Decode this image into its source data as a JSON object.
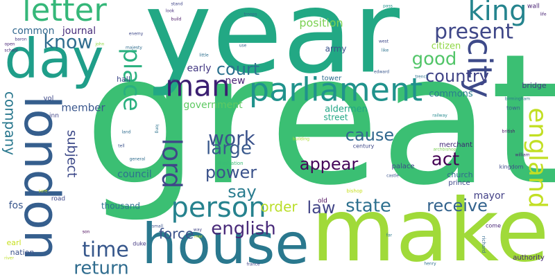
{
  "words": [
    {
      "text": "great",
      "color": "#3bbf73"
    },
    {
      "text": "year",
      "color": "#22a884"
    },
    {
      "text": "make",
      "color": "#a0da39"
    },
    {
      "text": "house",
      "color": "#2a788e"
    },
    {
      "text": "london",
      "color": "#355e8d"
    },
    {
      "text": "day",
      "color": "#1f9e89"
    },
    {
      "text": "city",
      "color": "#3e4a89"
    },
    {
      "text": "parliament",
      "color": "#20928c"
    },
    {
      "text": "letter",
      "color": "#35b779"
    },
    {
      "text": "person",
      "color": "#26828e"
    },
    {
      "text": "king",
      "color": "#25848e"
    },
    {
      "text": "england",
      "color": "#c2df23"
    },
    {
      "text": "place",
      "color": "#2ab07f"
    },
    {
      "text": "man",
      "color": "#3b1f71"
    },
    {
      "text": "lord",
      "color": "#3f4788"
    },
    {
      "text": "present",
      "color": "#3f4788"
    },
    {
      "text": "time",
      "color": "#38588c"
    },
    {
      "text": "know",
      "color": "#2f6c8e"
    },
    {
      "text": "good",
      "color": "#52c569"
    },
    {
      "text": "country",
      "color": "#414487"
    },
    {
      "text": "court",
      "color": "#2c718e"
    },
    {
      "text": "law",
      "color": "#414487"
    },
    {
      "text": "state",
      "color": "#2d708e"
    },
    {
      "text": "receive",
      "color": "#33638d"
    },
    {
      "text": "work",
      "color": "#3b528b"
    },
    {
      "text": "power",
      "color": "#3b528b"
    },
    {
      "text": "large",
      "color": "#38588c"
    },
    {
      "text": "appear",
      "color": "#46075a"
    },
    {
      "text": "cause",
      "color": "#31688e"
    },
    {
      "text": "english",
      "color": "#482979"
    },
    {
      "text": "return",
      "color": "#2f6c8e"
    },
    {
      "text": "order",
      "color": "#bade28"
    },
    {
      "text": "say",
      "color": "#297b8e"
    },
    {
      "text": "act",
      "color": "#440154"
    },
    {
      "text": "company",
      "color": "#2a788e"
    },
    {
      "text": "subject",
      "color": "#3e4a89"
    },
    {
      "text": "force",
      "color": "#3b528b"
    },
    {
      "text": "position",
      "color": "#7ad151"
    },
    {
      "text": "member",
      "color": "#39568c"
    },
    {
      "text": "government",
      "color": "#5ec962"
    },
    {
      "text": "council",
      "color": "#2d708e"
    },
    {
      "text": "early",
      "color": "#443983"
    },
    {
      "text": "new",
      "color": "#482475"
    },
    {
      "text": "mayor",
      "color": "#424086"
    },
    {
      "text": "common",
      "color": "#31688e"
    },
    {
      "text": "journal",
      "color": "#472d7b"
    },
    {
      "text": "aldermen",
      "color": "#21a585"
    },
    {
      "text": "commons",
      "color": "#287c8e"
    },
    {
      "text": "citizen",
      "color": "#8fd744"
    },
    {
      "text": "army",
      "color": "#3b528b"
    },
    {
      "text": "thousand",
      "color": "#2c728e"
    },
    {
      "text": "fos",
      "color": "#39568c"
    },
    {
      "text": "nation",
      "color": "#3b528b"
    },
    {
      "text": "earl",
      "color": "#c8e020"
    },
    {
      "text": "hall",
      "color": "#3e4989"
    },
    {
      "text": "street",
      "color": "#22a785"
    },
    {
      "text": "church",
      "color": "#31688e"
    },
    {
      "text": "palace",
      "color": "#3e4a89"
    },
    {
      "text": "prince",
      "color": "#3f4889"
    },
    {
      "text": "merchant",
      "color": "#3b1f71"
    },
    {
      "text": "authority",
      "color": "#482576"
    },
    {
      "text": "bridge",
      "color": "#443983"
    },
    {
      "text": "tower",
      "color": "#2e6e8e"
    },
    {
      "text": "kingdom",
      "color": "#3e4989"
    },
    {
      "text": "vol",
      "color": "#3e4989"
    },
    {
      "text": "town",
      "color": "#365c8d"
    },
    {
      "text": "old",
      "color": "#440154"
    },
    {
      "text": "century",
      "color": "#3f4889"
    },
    {
      "text": "illustration",
      "color": "#3bbb75"
    },
    {
      "text": "duke",
      "color": "#443983"
    },
    {
      "text": "come",
      "color": "#482576"
    },
    {
      "text": "road",
      "color": "#3f4889"
    },
    {
      "text": "wall",
      "color": "#482173"
    },
    {
      "text": "inn",
      "color": "#414487"
    },
    {
      "text": "birmingham",
      "color": "#2a788e"
    },
    {
      "text": "richard",
      "color": "#31688e"
    },
    {
      "text": "henry",
      "color": "#2d708e"
    },
    {
      "text": "france",
      "color": "#404588"
    },
    {
      "text": "edward",
      "color": "#39568c"
    },
    {
      "text": "bishop",
      "color": "#c8e020"
    },
    {
      "text": "castle",
      "color": "#3b528b"
    },
    {
      "text": "railway",
      "color": "#23898e"
    },
    {
      "text": "building",
      "color": "#addc30"
    },
    {
      "text": "john",
      "color": "#8fd744"
    },
    {
      "text": "open",
      "color": "#482576"
    },
    {
      "text": "far",
      "color": "#2a788e"
    },
    {
      "text": "son",
      "color": "#440154"
    },
    {
      "text": "river",
      "color": "#bddf26"
    },
    {
      "text": "die",
      "color": "#3e4989"
    },
    {
      "text": "pass",
      "color": "#21918c"
    },
    {
      "text": "west",
      "color": "#3e4989"
    },
    {
      "text": "like",
      "color": "#2c728e"
    },
    {
      "text": "life",
      "color": "#482475"
    },
    {
      "text": "stand",
      "color": "#404588"
    },
    {
      "text": "build",
      "color": "#471063"
    },
    {
      "text": "little",
      "color": "#2e6f8e"
    },
    {
      "text": "look",
      "color": "#472f7d"
    },
    {
      "text": "troops",
      "color": "#33638d"
    },
    {
      "text": "enemy",
      "color": "#3e4989"
    },
    {
      "text": "majesty",
      "color": "#2f6c8e"
    },
    {
      "text": "baron",
      "color": "#443983"
    },
    {
      "text": "school",
      "color": "#472c7a"
    },
    {
      "text": "use",
      "color": "#33638d"
    },
    {
      "text": "trench",
      "color": "#2c728e"
    },
    {
      "text": "land",
      "color": "#2f6c8e"
    },
    {
      "text": "tell",
      "color": "#3b528b"
    },
    {
      "text": "general",
      "color": "#2f6c8e"
    },
    {
      "text": "long",
      "color": "#2c728e"
    },
    {
      "text": "archbishop",
      "color": "#7ad151"
    },
    {
      "text": "william",
      "color": "#482475"
    },
    {
      "text": "british",
      "color": "#471063"
    },
    {
      "text": "sure",
      "color": "#c2df23"
    },
    {
      "text": "small",
      "color": "#3b528b"
    },
    {
      "text": "way",
      "color": "#414487"
    },
    {
      "text": "mar",
      "color": "#c8e020"
    },
    {
      "text": "hill",
      "color": "#3f4889"
    }
  ]
}
